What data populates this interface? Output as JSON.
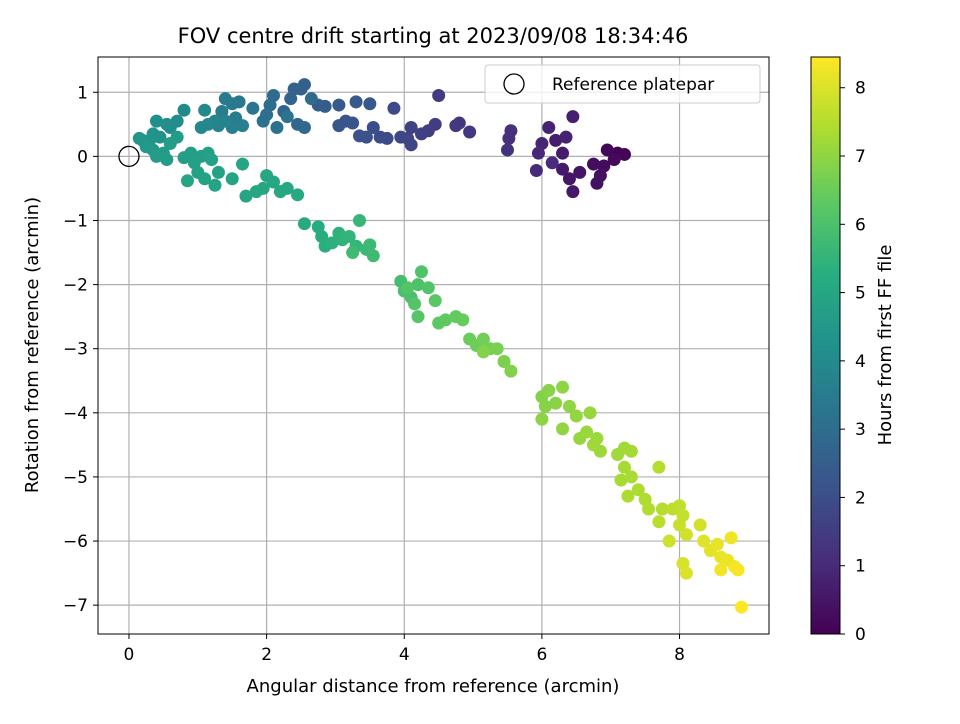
{
  "chart_data": {
    "type": "scatter",
    "title": "FOV centre drift starting at 2023/09/08 18:34:46",
    "xlabel": "Angular distance from reference (arcmin)",
    "ylabel": "Rotation from reference (arcmin)",
    "xlim": [
      -0.45,
      9.3
    ],
    "ylim": [
      -7.45,
      1.55
    ],
    "xticks": [
      0,
      2,
      4,
      6,
      8
    ],
    "yticks": [
      1,
      0,
      -1,
      -2,
      -3,
      -4,
      -5,
      -6,
      -7
    ],
    "tick_labels_x": [
      "0",
      "2",
      "4",
      "6",
      "8"
    ],
    "tick_labels_y": [
      "1",
      "0",
      "−1",
      "−2",
      "−3",
      "−4",
      "−5",
      "−6",
      "−7"
    ],
    "grid": true,
    "legend": {
      "position": "top-right",
      "entries": [
        "Reference platepar"
      ]
    },
    "reference_point": {
      "x": 0,
      "y": 0
    },
    "colorbar": {
      "label": "Hours from first FF file",
      "min": 0,
      "max": 8.45,
      "colormap": "viridis",
      "ticks": [
        0,
        1,
        2,
        3,
        4,
        5,
        6,
        7,
        8
      ],
      "tick_labels": [
        "0",
        "1",
        "2",
        "3",
        "4",
        "5",
        "6",
        "7",
        "8"
      ]
    },
    "series": [
      {
        "color_by": "hours",
        "points": [
          {
            "x": 7.1,
            "y": 0.05,
            "c": 0.05
          },
          {
            "x": 7.2,
            "y": 0.03,
            "c": 0.1
          },
          {
            "x": 6.95,
            "y": 0.1,
            "c": 0.15
          },
          {
            "x": 7.05,
            "y": -0.05,
            "c": 0.2
          },
          {
            "x": 6.9,
            "y": -0.15,
            "c": 0.25
          },
          {
            "x": 6.75,
            "y": -0.12,
            "c": 0.3
          },
          {
            "x": 6.85,
            "y": -0.3,
            "c": 0.35
          },
          {
            "x": 6.8,
            "y": -0.42,
            "c": 0.4
          },
          {
            "x": 6.55,
            "y": -0.25,
            "c": 0.45
          },
          {
            "x": 6.4,
            "y": -0.35,
            "c": 0.5
          },
          {
            "x": 6.45,
            "y": -0.55,
            "c": 0.55
          },
          {
            "x": 6.3,
            "y": -0.2,
            "c": 0.6
          },
          {
            "x": 6.3,
            "y": 0.05,
            "c": 0.65
          },
          {
            "x": 6.2,
            "y": 0.25,
            "c": 0.7
          },
          {
            "x": 6.45,
            "y": 0.62,
            "c": 0.75
          },
          {
            "x": 6.35,
            "y": 0.3,
            "c": 0.8
          },
          {
            "x": 6.1,
            "y": 0.45,
            "c": 0.85
          },
          {
            "x": 6.0,
            "y": 0.2,
            "c": 0.9
          },
          {
            "x": 5.95,
            "y": 0.05,
            "c": 0.95
          },
          {
            "x": 5.92,
            "y": -0.22,
            "c": 1.0
          },
          {
            "x": 6.15,
            "y": -0.1,
            "c": 1.05
          },
          {
            "x": 5.55,
            "y": 0.4,
            "c": 1.1
          },
          {
            "x": 5.52,
            "y": 0.28,
            "c": 1.15
          },
          {
            "x": 5.5,
            "y": 0.1,
            "c": 1.2
          },
          {
            "x": 4.95,
            "y": 0.38,
            "c": 1.3
          },
          {
            "x": 4.8,
            "y": 0.52,
            "c": 1.35
          },
          {
            "x": 4.75,
            "y": 0.48,
            "c": 1.4
          },
          {
            "x": 4.5,
            "y": 0.95,
            "c": 1.45
          },
          {
            "x": 4.45,
            "y": 0.5,
            "c": 1.5
          },
          {
            "x": 4.35,
            "y": 0.4,
            "c": 1.55
          },
          {
            "x": 4.25,
            "y": 0.35,
            "c": 1.6
          },
          {
            "x": 4.1,
            "y": 0.45,
            "c": 1.65
          },
          {
            "x": 4.05,
            "y": 0.28,
            "c": 1.7
          },
          {
            "x": 4.1,
            "y": 0.18,
            "c": 1.75
          },
          {
            "x": 3.95,
            "y": 0.3,
            "c": 1.8
          },
          {
            "x": 3.85,
            "y": 0.75,
            "c": 1.85
          },
          {
            "x": 3.75,
            "y": 0.28,
            "c": 1.9
          },
          {
            "x": 3.65,
            "y": 0.3,
            "c": 1.95
          },
          {
            "x": 3.55,
            "y": 0.45,
            "c": 2.0
          },
          {
            "x": 3.45,
            "y": 0.3,
            "c": 2.05
          },
          {
            "x": 3.35,
            "y": 0.32,
            "c": 2.1
          },
          {
            "x": 3.25,
            "y": 0.52,
            "c": 2.15
          },
          {
            "x": 3.15,
            "y": 0.55,
            "c": 2.2
          },
          {
            "x": 3.05,
            "y": 0.48,
            "c": 2.25
          },
          {
            "x": 3.5,
            "y": 0.82,
            "c": 2.3
          },
          {
            "x": 3.3,
            "y": 0.85,
            "c": 2.35
          },
          {
            "x": 3.05,
            "y": 0.8,
            "c": 2.4
          },
          {
            "x": 2.85,
            "y": 0.78,
            "c": 2.45
          },
          {
            "x": 2.75,
            "y": 0.8,
            "c": 2.5
          },
          {
            "x": 2.55,
            "y": 1.12,
            "c": 2.55
          },
          {
            "x": 2.5,
            "y": 1.05,
            "c": 2.6
          },
          {
            "x": 2.4,
            "y": 1.05,
            "c": 2.65
          },
          {
            "x": 2.35,
            "y": 0.9,
            "c": 2.7
          },
          {
            "x": 2.25,
            "y": 0.7,
            "c": 2.75
          },
          {
            "x": 2.45,
            "y": 0.5,
            "c": 2.8
          },
          {
            "x": 2.55,
            "y": 0.45,
            "c": 2.85
          },
          {
            "x": 2.65,
            "y": 0.9,
            "c": 2.9
          },
          {
            "x": 2.1,
            "y": 0.95,
            "c": 2.95
          },
          {
            "x": 2.05,
            "y": 0.8,
            "c": 3.0
          },
          {
            "x": 2.0,
            "y": 0.65,
            "c": 3.05
          },
          {
            "x": 1.95,
            "y": 0.55,
            "c": 3.1
          },
          {
            "x": 2.15,
            "y": 0.45,
            "c": 3.15
          },
          {
            "x": 2.3,
            "y": 0.62,
            "c": 3.2
          },
          {
            "x": 1.8,
            "y": 0.75,
            "c": 3.3
          },
          {
            "x": 1.6,
            "y": 0.85,
            "c": 3.35
          },
          {
            "x": 1.5,
            "y": 0.82,
            "c": 3.4
          },
          {
            "x": 1.4,
            "y": 0.9,
            "c": 3.45
          },
          {
            "x": 1.35,
            "y": 0.7,
            "c": 3.5
          },
          {
            "x": 1.55,
            "y": 0.6,
            "c": 3.55
          },
          {
            "x": 1.65,
            "y": 0.48,
            "c": 3.6
          },
          {
            "x": 1.5,
            "y": 0.45,
            "c": 3.65
          },
          {
            "x": 1.4,
            "y": 0.55,
            "c": 3.7
          },
          {
            "x": 1.3,
            "y": 0.48,
            "c": 3.75
          },
          {
            "x": 1.25,
            "y": 0.55,
            "c": 3.8
          },
          {
            "x": 1.15,
            "y": 0.5,
            "c": 3.85
          },
          {
            "x": 1.05,
            "y": 0.45,
            "c": 3.9
          },
          {
            "x": 1.1,
            "y": 0.72,
            "c": 3.95
          },
          {
            "x": 0.8,
            "y": 0.72,
            "c": 4.0
          },
          {
            "x": 0.7,
            "y": 0.55,
            "c": 4.05
          },
          {
            "x": 0.6,
            "y": 0.45,
            "c": 4.1
          },
          {
            "x": 0.55,
            "y": 0.5,
            "c": 4.15
          },
          {
            "x": 0.4,
            "y": 0.55,
            "c": 4.2
          },
          {
            "x": 0.35,
            "y": 0.35,
            "c": 4.25
          },
          {
            "x": 0.45,
            "y": 0.3,
            "c": 4.3
          },
          {
            "x": 0.3,
            "y": 0.25,
            "c": 4.35
          },
          {
            "x": 0.2,
            "y": 0.25,
            "c": 4.4
          },
          {
            "x": 0.15,
            "y": 0.28,
            "c": 4.45
          },
          {
            "x": 0.25,
            "y": 0.15,
            "c": 4.5
          },
          {
            "x": 0.35,
            "y": 0.1,
            "c": 4.55
          },
          {
            "x": 0.5,
            "y": 0.05,
            "c": 4.6
          },
          {
            "x": 0.4,
            "y": 0.0,
            "c": 4.62
          },
          {
            "x": 0.6,
            "y": 0.2,
            "c": 4.64
          },
          {
            "x": 0.7,
            "y": 0.3,
            "c": 4.66
          },
          {
            "x": 0.55,
            "y": -0.05,
            "c": 4.68
          },
          {
            "x": 0.8,
            "y": -0.02,
            "c": 4.7
          },
          {
            "x": 0.9,
            "y": 0.05,
            "c": 4.72
          },
          {
            "x": 1.05,
            "y": 0.0,
            "c": 4.74
          },
          {
            "x": 1.15,
            "y": 0.05,
            "c": 4.76
          },
          {
            "x": 0.95,
            "y": -0.1,
            "c": 4.78
          },
          {
            "x": 1.2,
            "y": -0.05,
            "c": 4.8
          },
          {
            "x": 1.0,
            "y": -0.25,
            "c": 4.82
          },
          {
            "x": 1.1,
            "y": -0.35,
            "c": 4.84
          },
          {
            "x": 1.3,
            "y": -0.25,
            "c": 4.86
          },
          {
            "x": 1.25,
            "y": -0.45,
            "c": 4.88
          },
          {
            "x": 1.5,
            "y": -0.35,
            "c": 4.9
          },
          {
            "x": 0.85,
            "y": -0.38,
            "c": 4.92
          },
          {
            "x": 1.65,
            "y": -0.12,
            "c": 4.94
          },
          {
            "x": 1.7,
            "y": -0.62,
            "c": 4.96
          },
          {
            "x": 1.85,
            "y": -0.55,
            "c": 4.98
          },
          {
            "x": 1.95,
            "y": -0.5,
            "c": 5.0
          },
          {
            "x": 2.0,
            "y": -0.3,
            "c": 5.02
          },
          {
            "x": 2.1,
            "y": -0.4,
            "c": 5.04
          },
          {
            "x": 2.2,
            "y": -0.55,
            "c": 5.06
          },
          {
            "x": 2.3,
            "y": -0.5,
            "c": 5.08
          },
          {
            "x": 2.45,
            "y": -0.6,
            "c": 5.1
          },
          {
            "x": 2.55,
            "y": -1.05,
            "c": 5.15
          },
          {
            "x": 2.75,
            "y": -1.1,
            "c": 5.2
          },
          {
            "x": 2.8,
            "y": -1.25,
            "c": 5.25
          },
          {
            "x": 2.85,
            "y": -1.4,
            "c": 5.3
          },
          {
            "x": 2.95,
            "y": -1.35,
            "c": 5.35
          },
          {
            "x": 3.05,
            "y": -1.2,
            "c": 5.4
          },
          {
            "x": 3.1,
            "y": -1.3,
            "c": 5.45
          },
          {
            "x": 3.2,
            "y": -1.25,
            "c": 5.5
          },
          {
            "x": 3.3,
            "y": -1.4,
            "c": 5.55
          },
          {
            "x": 3.35,
            "y": -1.0,
            "c": 5.6
          },
          {
            "x": 3.45,
            "y": -1.45,
            "c": 5.65
          },
          {
            "x": 3.5,
            "y": -1.38,
            "c": 5.7
          },
          {
            "x": 3.55,
            "y": -1.55,
            "c": 5.75
          },
          {
            "x": 3.25,
            "y": -1.5,
            "c": 5.78
          },
          {
            "x": 3.95,
            "y": -1.95,
            "c": 5.85
          },
          {
            "x": 4.0,
            "y": -2.1,
            "c": 5.9
          },
          {
            "x": 4.1,
            "y": -2.2,
            "c": 5.95
          },
          {
            "x": 4.2,
            "y": -2.0,
            "c": 6.0
          },
          {
            "x": 4.25,
            "y": -1.8,
            "c": 6.05
          },
          {
            "x": 4.35,
            "y": -2.05,
            "c": 6.1
          },
          {
            "x": 4.05,
            "y": -2.05,
            "c": 6.12
          },
          {
            "x": 4.15,
            "y": -2.3,
            "c": 6.15
          },
          {
            "x": 4.2,
            "y": -2.5,
            "c": 6.2
          },
          {
            "x": 4.45,
            "y": -2.25,
            "c": 6.25
          },
          {
            "x": 4.5,
            "y": -2.6,
            "c": 6.3
          },
          {
            "x": 4.6,
            "y": -2.55,
            "c": 6.35
          },
          {
            "x": 4.75,
            "y": -2.5,
            "c": 6.4
          },
          {
            "x": 4.85,
            "y": -2.55,
            "c": 6.45
          },
          {
            "x": 4.95,
            "y": -2.85,
            "c": 6.5
          },
          {
            "x": 5.05,
            "y": -2.95,
            "c": 6.55
          },
          {
            "x": 5.15,
            "y": -2.85,
            "c": 6.6
          },
          {
            "x": 5.25,
            "y": -3.0,
            "c": 6.65
          },
          {
            "x": 5.35,
            "y": -3.0,
            "c": 6.7
          },
          {
            "x": 5.45,
            "y": -3.2,
            "c": 6.75
          },
          {
            "x": 5.55,
            "y": -3.35,
            "c": 6.8
          },
          {
            "x": 5.15,
            "y": -3.05,
            "c": 6.82
          },
          {
            "x": 6.0,
            "y": -3.75,
            "c": 6.85
          },
          {
            "x": 6.05,
            "y": -3.9,
            "c": 6.88
          },
          {
            "x": 6.1,
            "y": -3.65,
            "c": 6.9
          },
          {
            "x": 6.2,
            "y": -3.85,
            "c": 6.92
          },
          {
            "x": 6.0,
            "y": -4.1,
            "c": 6.95
          },
          {
            "x": 6.3,
            "y": -3.6,
            "c": 6.98
          },
          {
            "x": 6.4,
            "y": -3.9,
            "c": 7.0
          },
          {
            "x": 6.3,
            "y": -4.25,
            "c": 7.02
          },
          {
            "x": 6.5,
            "y": -4.05,
            "c": 7.05
          },
          {
            "x": 6.55,
            "y": -4.4,
            "c": 7.08
          },
          {
            "x": 6.7,
            "y": -4.0,
            "c": 7.1
          },
          {
            "x": 6.65,
            "y": -4.3,
            "c": 7.12
          },
          {
            "x": 6.8,
            "y": -4.4,
            "c": 7.15
          },
          {
            "x": 6.85,
            "y": -4.6,
            "c": 7.18
          },
          {
            "x": 6.75,
            "y": -4.5,
            "c": 7.2
          },
          {
            "x": 7.1,
            "y": -4.65,
            "c": 7.22
          },
          {
            "x": 7.2,
            "y": -4.55,
            "c": 7.25
          },
          {
            "x": 7.3,
            "y": -4.6,
            "c": 7.28
          },
          {
            "x": 7.2,
            "y": -4.85,
            "c": 7.3
          },
          {
            "x": 7.15,
            "y": -5.05,
            "c": 7.32
          },
          {
            "x": 7.3,
            "y": -5.0,
            "c": 7.35
          },
          {
            "x": 7.4,
            "y": -5.2,
            "c": 7.38
          },
          {
            "x": 7.25,
            "y": -5.3,
            "c": 7.4
          },
          {
            "x": 7.5,
            "y": -5.35,
            "c": 7.42
          },
          {
            "x": 7.55,
            "y": -5.5,
            "c": 7.45
          },
          {
            "x": 7.7,
            "y": -4.85,
            "c": 7.48
          },
          {
            "x": 7.75,
            "y": -5.5,
            "c": 7.5
          },
          {
            "x": 7.7,
            "y": -5.7,
            "c": 7.55
          },
          {
            "x": 7.9,
            "y": -5.5,
            "c": 7.6
          },
          {
            "x": 8.0,
            "y": -5.45,
            "c": 7.65
          },
          {
            "x": 8.05,
            "y": -5.6,
            "c": 7.7
          },
          {
            "x": 8.0,
            "y": -5.75,
            "c": 7.75
          },
          {
            "x": 7.85,
            "y": -6.0,
            "c": 7.8
          },
          {
            "x": 8.1,
            "y": -5.9,
            "c": 7.85
          },
          {
            "x": 8.3,
            "y": -5.75,
            "c": 7.9
          },
          {
            "x": 8.05,
            "y": -6.35,
            "c": 7.95
          },
          {
            "x": 8.1,
            "y": -6.5,
            "c": 8.0
          },
          {
            "x": 8.35,
            "y": -6.0,
            "c": 8.05
          },
          {
            "x": 8.45,
            "y": -6.15,
            "c": 8.1
          },
          {
            "x": 8.55,
            "y": -6.05,
            "c": 8.15
          },
          {
            "x": 8.6,
            "y": -6.25,
            "c": 8.2
          },
          {
            "x": 8.7,
            "y": -6.3,
            "c": 8.22
          },
          {
            "x": 8.75,
            "y": -5.95,
            "c": 8.25
          },
          {
            "x": 8.6,
            "y": -6.45,
            "c": 8.28
          },
          {
            "x": 8.8,
            "y": -6.4,
            "c": 8.32
          },
          {
            "x": 8.85,
            "y": -6.45,
            "c": 8.38
          },
          {
            "x": 8.9,
            "y": -7.03,
            "c": 8.45
          }
        ]
      }
    ]
  }
}
